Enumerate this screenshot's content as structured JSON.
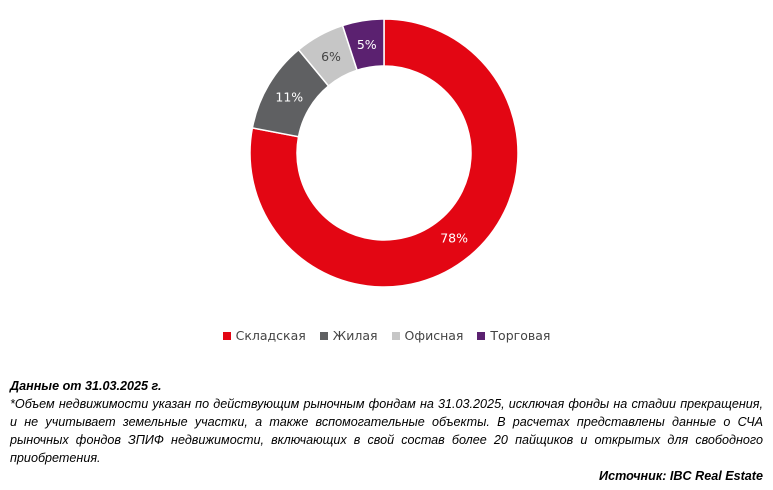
{
  "chart_data": {
    "type": "pie",
    "variant": "donut",
    "categories": [
      "Складская",
      "Жилая",
      "Офисная",
      "Торговая"
    ],
    "values": [
      78,
      11,
      6,
      5
    ],
    "labels": [
      "78%",
      "11%",
      "6%",
      "5%"
    ],
    "colors": [
      "#e30613",
      "#5f6062",
      "#c6c6c6",
      "#5b2170"
    ],
    "label_colors": [
      "#ffffff",
      "#ffffff",
      "#444444",
      "#ffffff"
    ],
    "legend_position": "bottom"
  },
  "note": {
    "title": "Данные от 31.03.2025 г.",
    "body": "*Объем недвижимости указан по действующим рыночным фондам на 31.03.2025, исключая фонды на стадии прекращения, и не учитывает земельные участки, а также вспомогательные объекты. В расчетах представлены данные о СЧА рыночных фондов ЗПИФ недвижимости, включающих в свой состав более 20 пайщиков и открытых для свободного приобретения.",
    "source": "Источник: IBC Real Estate"
  }
}
